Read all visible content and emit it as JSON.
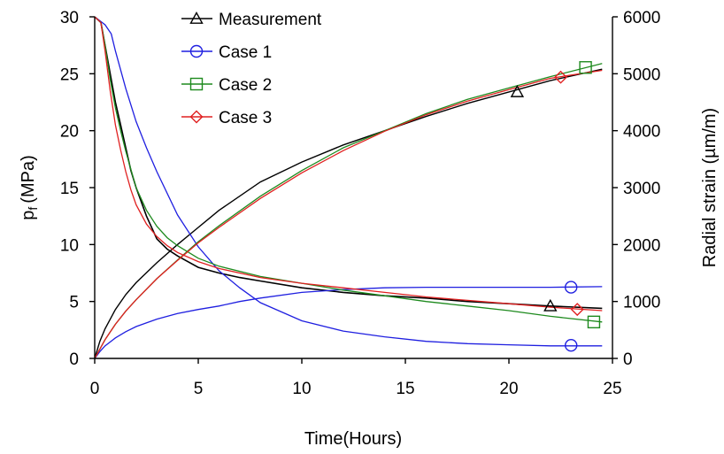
{
  "chart_data": {
    "type": "line",
    "xlabel": "Time(Hours)",
    "ylabel_left": "p",
    "ylabel_left_sub": "f",
    "ylabel_left_unit": "(MPa)",
    "ylabel_right": "Radial strain (µm/m)",
    "xlim": [
      0,
      25
    ],
    "ylim_left": [
      0,
      30
    ],
    "ylim_right": [
      0,
      6000
    ],
    "xticks": [
      "0",
      "5",
      "10",
      "15",
      "20",
      "25"
    ],
    "yticks_left": [
      "0",
      "5",
      "10",
      "15",
      "20",
      "25",
      "30"
    ],
    "yticks_right": [
      "0",
      "1000",
      "2000",
      "3000",
      "4000",
      "5000",
      "6000"
    ],
    "grid": false,
    "legend_position": "top-center",
    "series": [
      {
        "name": "Measurement",
        "color": "#000000",
        "marker": "triangle",
        "pressure_axis": "left",
        "pressure": {
          "x": [
            0,
            0.3,
            0.5,
            0.75,
            1,
            1.25,
            1.5,
            1.75,
            2,
            2.5,
            3,
            3.5,
            4,
            5,
            6,
            7,
            8,
            10,
            12,
            14,
            16,
            18,
            20,
            22,
            24.5
          ],
          "y": [
            30,
            29.5,
            27.5,
            25,
            22.5,
            20.5,
            18.5,
            16.5,
            15,
            12.5,
            10.5,
            9.6,
            9,
            8,
            7.5,
            7.1,
            6.8,
            6.2,
            5.8,
            5.5,
            5.3,
            5.0,
            4.8,
            4.6,
            4.4
          ]
        },
        "strain": {
          "x": [
            0,
            0.25,
            0.5,
            1,
            1.5,
            2,
            3,
            4,
            5,
            6,
            8,
            10,
            12,
            14,
            16,
            18,
            20,
            22,
            24.5
          ],
          "y": [
            0,
            300,
            520,
            860,
            1120,
            1330,
            1680,
            2000,
            2300,
            2600,
            3100,
            3450,
            3750,
            4000,
            4250,
            4480,
            4680,
            4880,
            5080
          ]
        },
        "marker_points": [
          {
            "x": 20.4,
            "y": 23.4
          },
          {
            "x": 22.0,
            "y": 4.6
          }
        ]
      },
      {
        "name": "Case 1",
        "color": "#1f1fe0",
        "marker": "circle",
        "pressure_axis": "left",
        "pressure": {
          "x": [
            0,
            0.5,
            0.8,
            1,
            1.5,
            2,
            2.5,
            3,
            4,
            5,
            6,
            7,
            8,
            10,
            12,
            14,
            16,
            18,
            20,
            22,
            24.5
          ],
          "y": [
            30,
            29.3,
            28.5,
            27,
            23.7,
            20.8,
            18.5,
            16.4,
            12.6,
            9.8,
            7.7,
            6.2,
            4.9,
            3.3,
            2.4,
            1.9,
            1.5,
            1.3,
            1.2,
            1.1,
            1.1
          ]
        },
        "strain": {
          "x": [
            0,
            0.25,
            0.5,
            1,
            1.5,
            2,
            3,
            4,
            5,
            6,
            7,
            8,
            10,
            12,
            14,
            16,
            18,
            20,
            22,
            24.5
          ],
          "y": [
            0,
            120,
            220,
            360,
            470,
            560,
            690,
            790,
            860,
            920,
            1000,
            1060,
            1160,
            1210,
            1240,
            1250,
            1250,
            1250,
            1250,
            1260
          ]
        },
        "marker_points": [
          {
            "x": 23.0,
            "y": 6.25
          },
          {
            "x": 23.0,
            "y": 1.15
          }
        ]
      },
      {
        "name": "Case 2",
        "color": "#1e8a1e",
        "marker": "square",
        "pressure_axis": "left",
        "pressure": {
          "x": [
            0,
            0.3,
            0.5,
            0.75,
            1,
            1.25,
            1.5,
            1.75,
            2,
            2.5,
            3,
            3.5,
            4,
            5,
            6,
            8,
            10,
            12,
            14,
            16,
            18,
            20,
            22,
            24.5
          ],
          "y": [
            30,
            29.5,
            27.5,
            24.5,
            22,
            20,
            18.2,
            16.6,
            15,
            13,
            11.6,
            10.6,
            9.9,
            8.8,
            8.1,
            7.2,
            6.6,
            6.0,
            5.5,
            5.0,
            4.6,
            4.2,
            3.7,
            3.2
          ]
        },
        "strain": {
          "x": [
            0,
            0.5,
            1,
            1.5,
            2,
            3,
            4,
            5,
            6,
            8,
            10,
            12,
            14,
            16,
            18,
            20,
            22,
            24.5
          ],
          "y": [
            0,
            330,
            600,
            830,
            1030,
            1400,
            1730,
            2050,
            2330,
            2850,
            3300,
            3700,
            4000,
            4300,
            4550,
            4750,
            4950,
            5180
          ]
        },
        "marker_points": [
          {
            "x": 23.7,
            "y": 25.55
          },
          {
            "x": 24.1,
            "y": 3.2
          }
        ]
      },
      {
        "name": "Case 3",
        "color": "#e02020",
        "marker": "diamond",
        "pressure_axis": "left",
        "pressure": {
          "x": [
            0,
            0.3,
            0.5,
            0.75,
            1,
            1.25,
            1.5,
            1.75,
            2,
            2.5,
            3,
            3.5,
            4,
            5,
            6,
            8,
            10,
            12,
            14,
            16,
            18,
            20,
            22,
            24.5
          ],
          "y": [
            30,
            29.5,
            27,
            23.5,
            20.5,
            18.3,
            16.4,
            14.8,
            13.5,
            11.8,
            10.7,
            9.9,
            9.3,
            8.5,
            7.9,
            7.1,
            6.6,
            6.2,
            5.8,
            5.4,
            5.1,
            4.8,
            4.5,
            4.2
          ]
        },
        "strain": {
          "x": [
            0,
            0.5,
            1,
            1.5,
            2,
            3,
            4,
            5,
            6,
            8,
            10,
            12,
            14,
            16,
            18,
            20,
            22,
            24.5
          ],
          "y": [
            0,
            330,
            600,
            830,
            1030,
            1400,
            1720,
            2030,
            2300,
            2810,
            3260,
            3650,
            3990,
            4280,
            4520,
            4720,
            4920,
            5060
          ]
        },
        "marker_points": [
          {
            "x": 22.5,
            "y": 24.7
          },
          {
            "x": 23.3,
            "y": 4.3
          }
        ]
      }
    ]
  }
}
